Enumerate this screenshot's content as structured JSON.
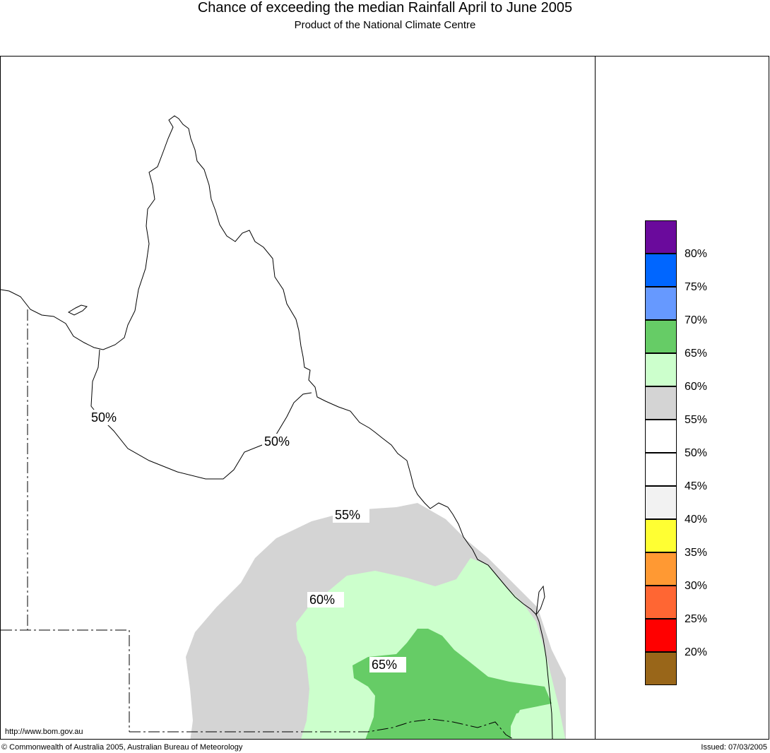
{
  "header": {
    "title": "Chance of exceeding the median Rainfall April to June 2005",
    "subtitle": "Product of the National Climate Centre"
  },
  "footer": {
    "url": "http://www.bom.gov.au",
    "copyright": "© Commonwealth of Australia 2005, Australian Bureau of Meteorology",
    "issued": "Issued: 07/03/2005"
  },
  "contour_labels": [
    "50%",
    "50%",
    "55%",
    "60%",
    "65%"
  ],
  "legend": {
    "colors": [
      "#6a0a9c",
      "#0066ff",
      "#6699ff",
      "#66cc66",
      "#ccffcc",
      "#d4d4d4",
      "#ffffff",
      "#ffffff",
      "#f2f2f2",
      "#ffff33",
      "#ff9933",
      "#ff6633",
      "#ff0000",
      "#996619"
    ],
    "labels": [
      "80%",
      "75%",
      "70%",
      "65%",
      "60%",
      "55%",
      "50%",
      "45%",
      "40%",
      "35%",
      "30%",
      "25%",
      "20%"
    ]
  },
  "map_colors": {
    "band_55_60": "#d4d4d4",
    "band_60_65": "#ccffcc",
    "band_65_70": "#66cc66"
  }
}
